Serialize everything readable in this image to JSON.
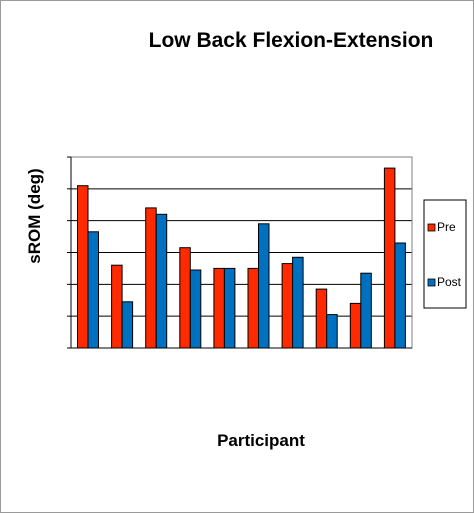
{
  "chart_data": {
    "type": "bar",
    "title": "Low Back Flexion-Extension",
    "xlabel": "Participant",
    "ylabel": "sROM (deg)",
    "categories": [
      "",
      "",
      "",
      "",
      "",
      "",
      "",
      "",
      "",
      ""
    ],
    "series": [
      {
        "name": "Pre",
        "color": "#ff2a00",
        "values": [
          5.1,
          2.6,
          4.4,
          3.15,
          2.5,
          2.5,
          2.65,
          1.85,
          1.4,
          5.65
        ]
      },
      {
        "name": "Post",
        "color": "#0070c0",
        "values": [
          3.65,
          1.45,
          4.2,
          2.45,
          2.5,
          3.9,
          2.85,
          1.05,
          2.35,
          3.3
        ]
      }
    ],
    "ylim": [
      0,
      6
    ],
    "grid": true,
    "y_tick_labels_shown": false,
    "legend_position": "right",
    "colors": {
      "plot_background": "#ffffff",
      "gridline": "#000000",
      "frame": "#7f7f7f"
    }
  }
}
